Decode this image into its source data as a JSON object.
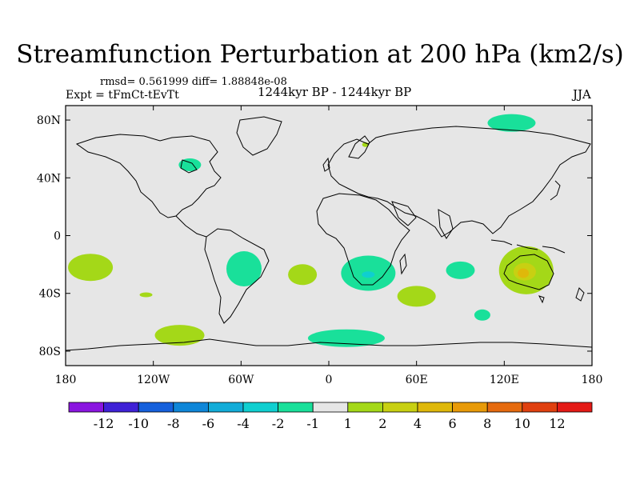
{
  "title": "Streamfunction Perturbation at 200 hPa (km2/s)",
  "stats": "rmsd= 0.561999 diff= 1.88848e-08",
  "experiment": "Expt = tFmCt-tEvTt",
  "period": "1244kyr BP - 1244kyr BP",
  "season": "JJA",
  "axes": {
    "lat_ticks": [
      {
        "value": 80,
        "label": "80N"
      },
      {
        "value": 40,
        "label": "40N"
      },
      {
        "value": 0,
        "label": "0"
      },
      {
        "value": -40,
        "label": "40S"
      },
      {
        "value": -80,
        "label": "80S"
      }
    ],
    "lon_ticks": [
      {
        "value": -180,
        "label": "180"
      },
      {
        "value": -120,
        "label": "120W"
      },
      {
        "value": -60,
        "label": "60W"
      },
      {
        "value": 0,
        "label": "0"
      },
      {
        "value": 60,
        "label": "60E"
      },
      {
        "value": 120,
        "label": "120E"
      },
      {
        "value": 180,
        "label": "180"
      }
    ]
  },
  "colorbar": {
    "colors": [
      "#8a15e0",
      "#3f21d6",
      "#1560dc",
      "#0e86d8",
      "#12acd8",
      "#0fcfd0",
      "#19e09a",
      "#e6e6e6",
      "#a4d818",
      "#c8d012",
      "#dfb80a",
      "#e89a08",
      "#e56a0e",
      "#e0400f",
      "#e41a16"
    ],
    "labels": [
      "-12",
      "-10",
      "-8",
      "-6",
      "-4",
      "-2",
      "-1",
      "1",
      "2",
      "4",
      "6",
      "8",
      "10",
      "12"
    ]
  },
  "chart_data": {
    "type": "contour-map",
    "variable": "Streamfunction Perturbation at 200 hPa",
    "units": "km2/s",
    "projection": "cylindrical equidistant",
    "lon_range": [
      -180,
      180
    ],
    "lat_range": [
      -90,
      90
    ],
    "background_value_range": [
      -1,
      1
    ],
    "features": [
      {
        "lon": 125,
        "lat": 78,
        "value_range": [
          -2,
          -1
        ],
        "description": "negative anomaly over northern Siberia"
      },
      {
        "lon": -95,
        "lat": 49,
        "value_range": [
          -2,
          -1
        ],
        "description": "small negative anomaly over central Canada"
      },
      {
        "lon": 25,
        "lat": 63,
        "value_range": [
          1,
          2
        ],
        "description": "tiny positive spot over Scandinavia"
      },
      {
        "lon": -163,
        "lat": -22,
        "value_range": [
          1,
          2
        ],
        "description": "positive anomaly over South Pacific"
      },
      {
        "lon": -125,
        "lat": -41,
        "value_range": [
          1,
          2
        ],
        "description": "tiny positive spot in South Pacific"
      },
      {
        "lon": -102,
        "lat": -69,
        "value_range": [
          1,
          2
        ],
        "description": "positive anomaly near Antarctic coast"
      },
      {
        "lon": -58,
        "lat": -23,
        "value_range": [
          -2,
          -1
        ],
        "description": "negative anomaly over South America"
      },
      {
        "lon": -18,
        "lat": -27,
        "value_range": [
          1,
          2
        ],
        "description": "positive anomaly over South Atlantic"
      },
      {
        "lon": 27,
        "lat": -26,
        "value_range": [
          -2,
          -1
        ],
        "description": "negative anomaly over southern Africa"
      },
      {
        "lon": 27,
        "lat": -27,
        "value_range": [
          -4,
          -2
        ],
        "description": "negative core over southern Africa"
      },
      {
        "lon": 60,
        "lat": -42,
        "value_range": [
          1,
          2
        ],
        "description": "positive anomaly south of Madagascar"
      },
      {
        "lon": 90,
        "lat": -24,
        "value_range": [
          -2,
          -1
        ],
        "description": "negative anomaly over Indian Ocean"
      },
      {
        "lon": 105,
        "lat": -55,
        "value_range": [
          -2,
          -1
        ],
        "description": "small negative anomaly over Southern Ocean"
      },
      {
        "lon": 135,
        "lat": -24,
        "value_range": [
          1,
          2
        ],
        "description": "positive anomaly over Australia"
      },
      {
        "lon": 134,
        "lat": -25,
        "value_range": [
          2,
          4
        ],
        "description": "positive core over Australia"
      },
      {
        "lon": 133,
        "lat": -26,
        "value_range": [
          4,
          6
        ],
        "description": "positive center over Australia"
      },
      {
        "lon": 12,
        "lat": -71,
        "value_range": [
          -2,
          -1
        ],
        "description": "negative anomaly near Antarctica"
      }
    ]
  }
}
